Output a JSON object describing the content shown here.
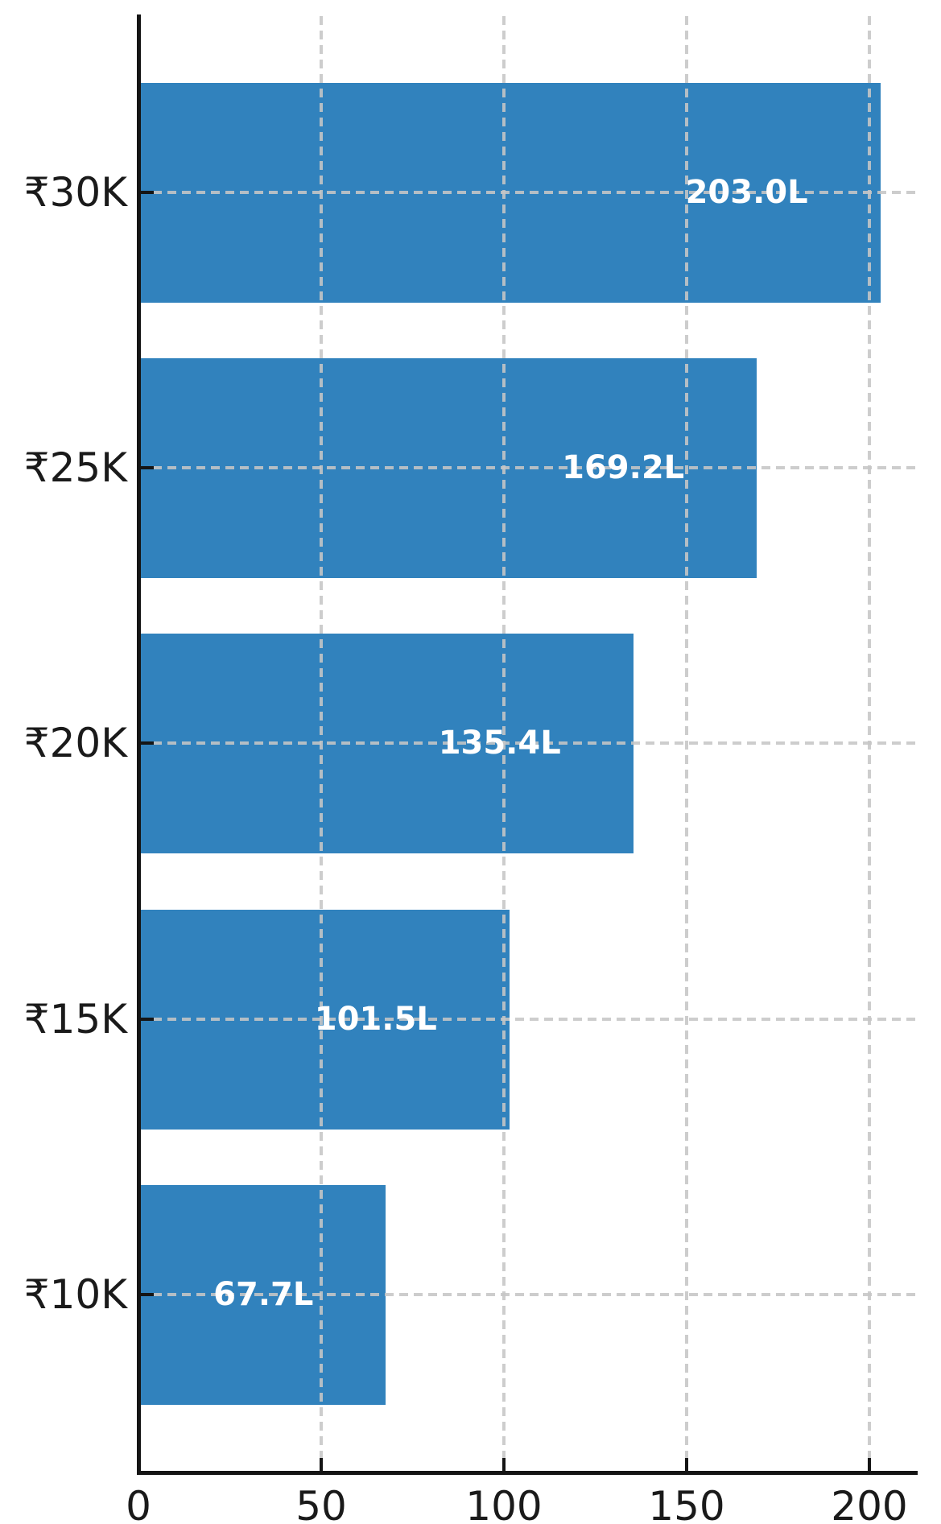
{
  "chart_data": {
    "type": "bar",
    "orientation": "horizontal",
    "title": "",
    "categories": [
      "₹30K",
      "₹25K",
      "₹20K",
      "₹15K",
      "₹10K"
    ],
    "values": [
      203.0,
      169.2,
      135.4,
      101.5,
      67.7
    ],
    "value_labels": [
      "203.0L",
      "169.2L",
      "135.4L",
      "101.5L",
      "67.7L"
    ],
    "x_tick_values": [
      0,
      50,
      100,
      150,
      200
    ],
    "x_tick_labels": [
      "0",
      "50",
      "100",
      "150",
      "200"
    ],
    "xlim": [
      0,
      213
    ],
    "xlabel": "",
    "ylabel": "",
    "grid": "dashed-both-axes-over-bars",
    "legend": "none",
    "colors": {
      "bar": "#3182bd",
      "grid": "#c6c6c6",
      "axis": "#151515",
      "tick_label_text": "#1a1a1a",
      "value_label_text": "#ffffff",
      "background": "#ffffff"
    }
  }
}
